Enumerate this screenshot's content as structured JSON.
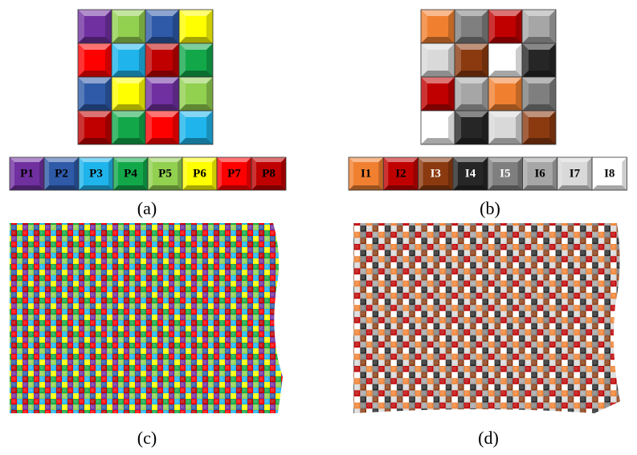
{
  "panel_a": {
    "labels": [
      "P1",
      "P2",
      "P3",
      "P4",
      "P5",
      "P6",
      "P7",
      "P8"
    ],
    "caption": "(a)"
  },
  "panel_b": {
    "labels": [
      "I1",
      "I2",
      "I3",
      "I4",
      "I5",
      "I6",
      "I7",
      "I8"
    ],
    "caption": "(b)"
  },
  "panel_c": {
    "caption": "(c)"
  },
  "panel_d": {
    "caption": "(d)"
  }
}
